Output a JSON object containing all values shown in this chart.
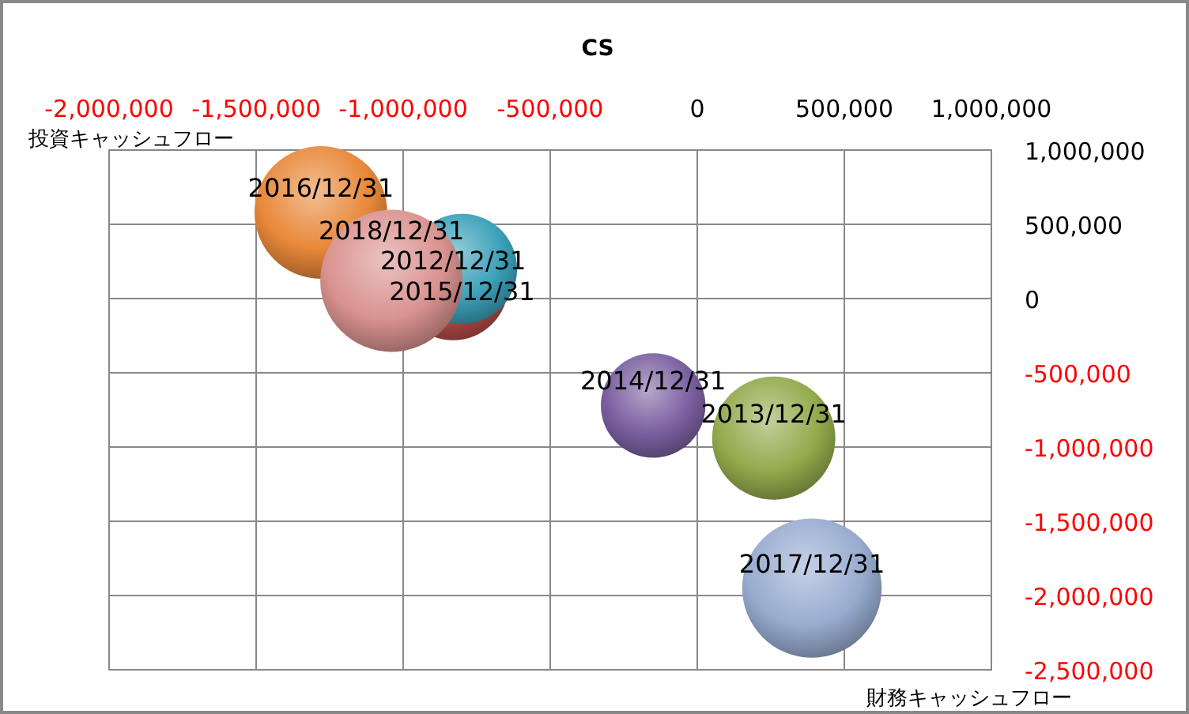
{
  "chart_data": {
    "type": "bubble",
    "title": "CS",
    "xlabel": "財務キャッシュフロー",
    "ylabel": "投資キャッシュフロー",
    "xlim": [
      -2000000,
      1000000
    ],
    "ylim": [
      -2500000,
      1000000
    ],
    "xticks": [
      {
        "value": -2000000,
        "label": "-2,000,000"
      },
      {
        "value": -1500000,
        "label": "-1,500,000"
      },
      {
        "value": -1000000,
        "label": "-1,000,000"
      },
      {
        "value": -500000,
        "label": "-500,000"
      },
      0,
      {
        "value": 500000,
        "label": "500,000"
      },
      {
        "value": 1000000,
        "label": "1,000,000"
      }
    ],
    "yticks": [
      {
        "value": 1000000,
        "label": "1,000,000"
      },
      {
        "value": 500000,
        "label": "500,000"
      },
      0,
      {
        "value": -500000,
        "label": "-500,000"
      },
      {
        "value": -1000000,
        "label": "-1,000,000"
      },
      {
        "value": -1500000,
        "label": "-1,500,000"
      },
      {
        "value": -2000000,
        "label": "-2,000,000"
      },
      {
        "value": -2500000,
        "label": "-2,500,000"
      }
    ],
    "grid": true,
    "legend": false,
    "series": [
      {
        "name": "2012/12/31",
        "color": "#b24a45",
        "x": [
          -830000
        ],
        "values": [
          90000
        ],
        "sizes": [
          0.6
        ]
      },
      {
        "name": "2013/12/31",
        "color": "#92aa4c",
        "x": [
          260000
        ],
        "values": [
          -940000
        ],
        "sizes": [
          0.75
        ]
      },
      {
        "name": "2014/12/31",
        "color": "#7a5fa0",
        "x": [
          -150000
        ],
        "values": [
          -720000
        ],
        "sizes": [
          0.54
        ]
      },
      {
        "name": "2015/12/31",
        "color": "#3aa0b8",
        "x": [
          -800000
        ],
        "values": [
          200000
        ],
        "sizes": [
          0.6
        ]
      },
      {
        "name": "2016/12/31",
        "color": "#e8883a",
        "x": [
          -1280000
        ],
        "values": [
          580000
        ],
        "sizes": [
          0.87
        ]
      },
      {
        "name": "2017/12/31",
        "color": "#98acd0",
        "x": [
          390000
        ],
        "values": [
          -1950000
        ],
        "sizes": [
          0.96
        ]
      },
      {
        "name": "2018/12/31",
        "color": "#d9928f",
        "x": [
          -1040000
        ],
        "values": [
          120000
        ],
        "sizes": [
          1
        ]
      }
    ]
  }
}
